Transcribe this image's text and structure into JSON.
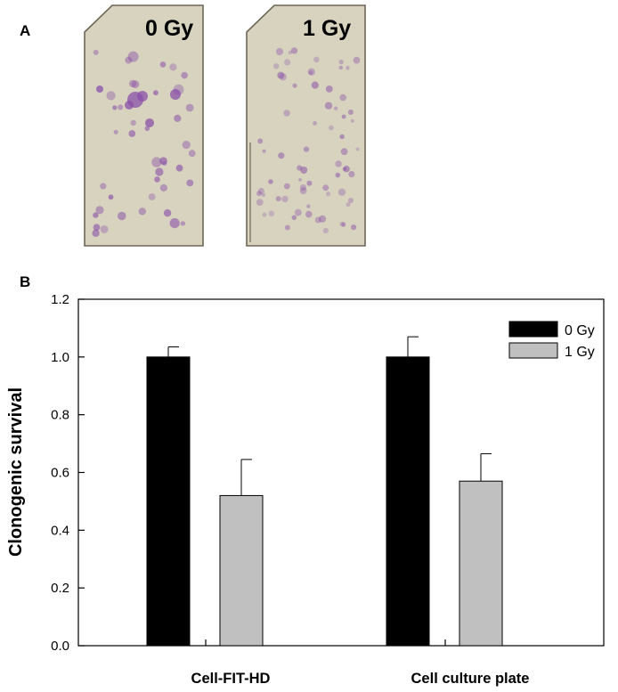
{
  "panel_a": {
    "letter": "A",
    "slides": [
      {
        "label": "0 Gy",
        "dose": 0
      },
      {
        "label": "1 Gy",
        "dose": 1
      }
    ],
    "colors": {
      "slide_fill": "#d7d3bf",
      "colony": "#8a4fa8",
      "slide_edge": "#6e6658"
    }
  },
  "panel_b": {
    "letter": "B",
    "chart_data": {
      "type": "bar",
      "categories": [
        "Cell-FIT-HD",
        "Cell culture plate"
      ],
      "series": [
        {
          "name": "0 Gy",
          "color": "#000000",
          "values": [
            1.0,
            1.0
          ],
          "errors": [
            0.035,
            0.07
          ]
        },
        {
          "name": "1 Gy",
          "color": "#c0c0c0",
          "values": [
            0.52,
            0.57
          ],
          "errors": [
            0.125,
            0.095
          ]
        }
      ],
      "ylabel": "Clonogenic survival",
      "xlabel": "",
      "ylim": [
        0,
        1.2
      ],
      "yticks": [
        "0.0",
        "0.2",
        "0.4",
        "0.6",
        "0.8",
        "1.0",
        "1.2"
      ],
      "grid": false,
      "legend_position": "top-right"
    }
  }
}
